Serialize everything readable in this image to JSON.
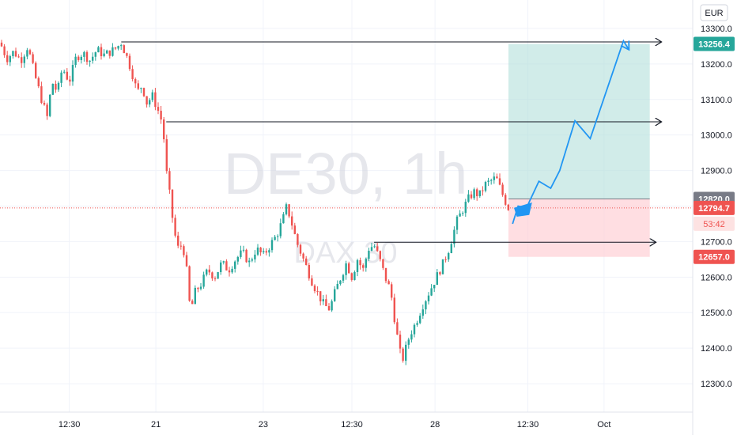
{
  "currency_label": "EUR",
  "watermark": {
    "symbol": "DE30, 1h",
    "name": "DAX 30"
  },
  "countdown": "53:42",
  "colors": {
    "up": "#26a69a",
    "down": "#ef5350",
    "projection": "#2196f3",
    "target_zone": "#b2dfdb",
    "stop_zone": "#ffcdd2",
    "grid": "#f0f3fa",
    "axis_text": "#131722"
  },
  "chart_data": {
    "type": "candlestick",
    "symbol": "DE30",
    "interval": "1h",
    "currency": "EUR",
    "ylim": [
      12220,
      13380
    ],
    "y_ticks": [
      "12300.0",
      "12400.0",
      "12500.0",
      "12600.0",
      "12700.0",
      "12800.0",
      "12900.0",
      "13000.0",
      "13100.0",
      "13200.0",
      "13300.0"
    ],
    "x_ticks": [
      {
        "label": "12:30",
        "t": 0.1
      },
      {
        "label": "21",
        "t": 0.225
      },
      {
        "label": "23",
        "t": 0.38
      },
      {
        "label": "12:30",
        "t": 0.508
      },
      {
        "label": "28",
        "t": 0.628
      },
      {
        "label": "12:30",
        "t": 0.762
      },
      {
        "label": "Oct",
        "t": 0.872
      }
    ],
    "price_series": [
      [
        0.0,
        13260
      ],
      [
        0.01,
        13215
      ],
      [
        0.02,
        13235
      ],
      [
        0.03,
        13210
      ],
      [
        0.04,
        13250
      ],
      [
        0.05,
        13170
      ],
      [
        0.06,
        13100
      ],
      [
        0.068,
        13050
      ],
      [
        0.075,
        13150
      ],
      [
        0.083,
        13120
      ],
      [
        0.09,
        13190
      ],
      [
        0.1,
        13150
      ],
      [
        0.11,
        13220
      ],
      [
        0.12,
        13230
      ],
      [
        0.13,
        13210
      ],
      [
        0.14,
        13240
      ],
      [
        0.15,
        13225
      ],
      [
        0.16,
        13235
      ],
      [
        0.168,
        13245
      ],
      [
        0.175,
        13260
      ],
      [
        0.183,
        13220
      ],
      [
        0.19,
        13180
      ],
      [
        0.198,
        13120
      ],
      [
        0.205,
        13140
      ],
      [
        0.212,
        13090
      ],
      [
        0.22,
        13110
      ],
      [
        0.228,
        13070
      ],
      [
        0.235,
        13030
      ],
      [
        0.24,
        12900
      ],
      [
        0.245,
        12830
      ],
      [
        0.25,
        12750
      ],
      [
        0.256,
        12680
      ],
      [
        0.262,
        12690
      ],
      [
        0.268,
        12660
      ],
      [
        0.272,
        12540
      ],
      [
        0.276,
        12510
      ],
      [
        0.282,
        12560
      ],
      [
        0.29,
        12580
      ],
      [
        0.3,
        12620
      ],
      [
        0.31,
        12600
      ],
      [
        0.32,
        12640
      ],
      [
        0.33,
        12620
      ],
      [
        0.34,
        12650
      ],
      [
        0.35,
        12670
      ],
      [
        0.36,
        12640
      ],
      [
        0.37,
        12680
      ],
      [
        0.38,
        12660
      ],
      [
        0.39,
        12690
      ],
      [
        0.4,
        12720
      ],
      [
        0.408,
        12760
      ],
      [
        0.414,
        12800
      ],
      [
        0.42,
        12760
      ],
      [
        0.428,
        12700
      ],
      [
        0.436,
        12660
      ],
      [
        0.444,
        12620
      ],
      [
        0.452,
        12580
      ],
      [
        0.46,
        12550
      ],
      [
        0.468,
        12520
      ],
      [
        0.476,
        12510
      ],
      [
        0.484,
        12560
      ],
      [
        0.492,
        12600
      ],
      [
        0.5,
        12640
      ],
      [
        0.508,
        12600
      ],
      [
        0.516,
        12650
      ],
      [
        0.524,
        12620
      ],
      [
        0.532,
        12680
      ],
      [
        0.54,
        12690
      ],
      [
        0.548,
        12650
      ],
      [
        0.556,
        12600
      ],
      [
        0.564,
        12560
      ],
      [
        0.572,
        12450
      ],
      [
        0.58,
        12360
      ],
      [
        0.586,
        12400
      ],
      [
        0.592,
        12440
      ],
      [
        0.6,
        12470
      ],
      [
        0.61,
        12520
      ],
      [
        0.62,
        12560
      ],
      [
        0.63,
        12600
      ],
      [
        0.64,
        12640
      ],
      [
        0.648,
        12680
      ],
      [
        0.654,
        12720
      ],
      [
        0.66,
        12760
      ],
      [
        0.668,
        12790
      ],
      [
        0.676,
        12820
      ],
      [
        0.684,
        12840
      ],
      [
        0.692,
        12830
      ],
      [
        0.7,
        12860
      ],
      [
        0.708,
        12870
      ],
      [
        0.716,
        12880
      ],
      [
        0.722,
        12850
      ],
      [
        0.728,
        12820
      ],
      [
        0.735,
        12790
      ]
    ],
    "horizontal_lines": [
      {
        "from_t": 0.175,
        "to_t": 0.955,
        "price": 13262
      },
      {
        "from_t": 0.24,
        "to_t": 0.955,
        "price": 13037
      },
      {
        "from_t": 0.54,
        "to_t": 0.947,
        "price": 12698
      }
    ],
    "position": {
      "from_t": 0.734,
      "to_t": 0.938,
      "entry": 12820.0,
      "target": 13256.4,
      "stop": 12657.0,
      "current": 12794.7
    },
    "projection": [
      [
        0.74,
        12750
      ],
      [
        0.748,
        12800
      ],
      [
        0.76,
        12795
      ],
      [
        0.778,
        12870
      ],
      [
        0.795,
        12850
      ],
      [
        0.808,
        12900
      ],
      [
        0.83,
        13040
      ],
      [
        0.852,
        12990
      ],
      [
        0.9,
        13265
      ],
      [
        0.908,
        13240
      ]
    ],
    "price_labels": [
      "13256.4",
      "12820.0",
      "12794.7",
      "12657.0"
    ]
  }
}
